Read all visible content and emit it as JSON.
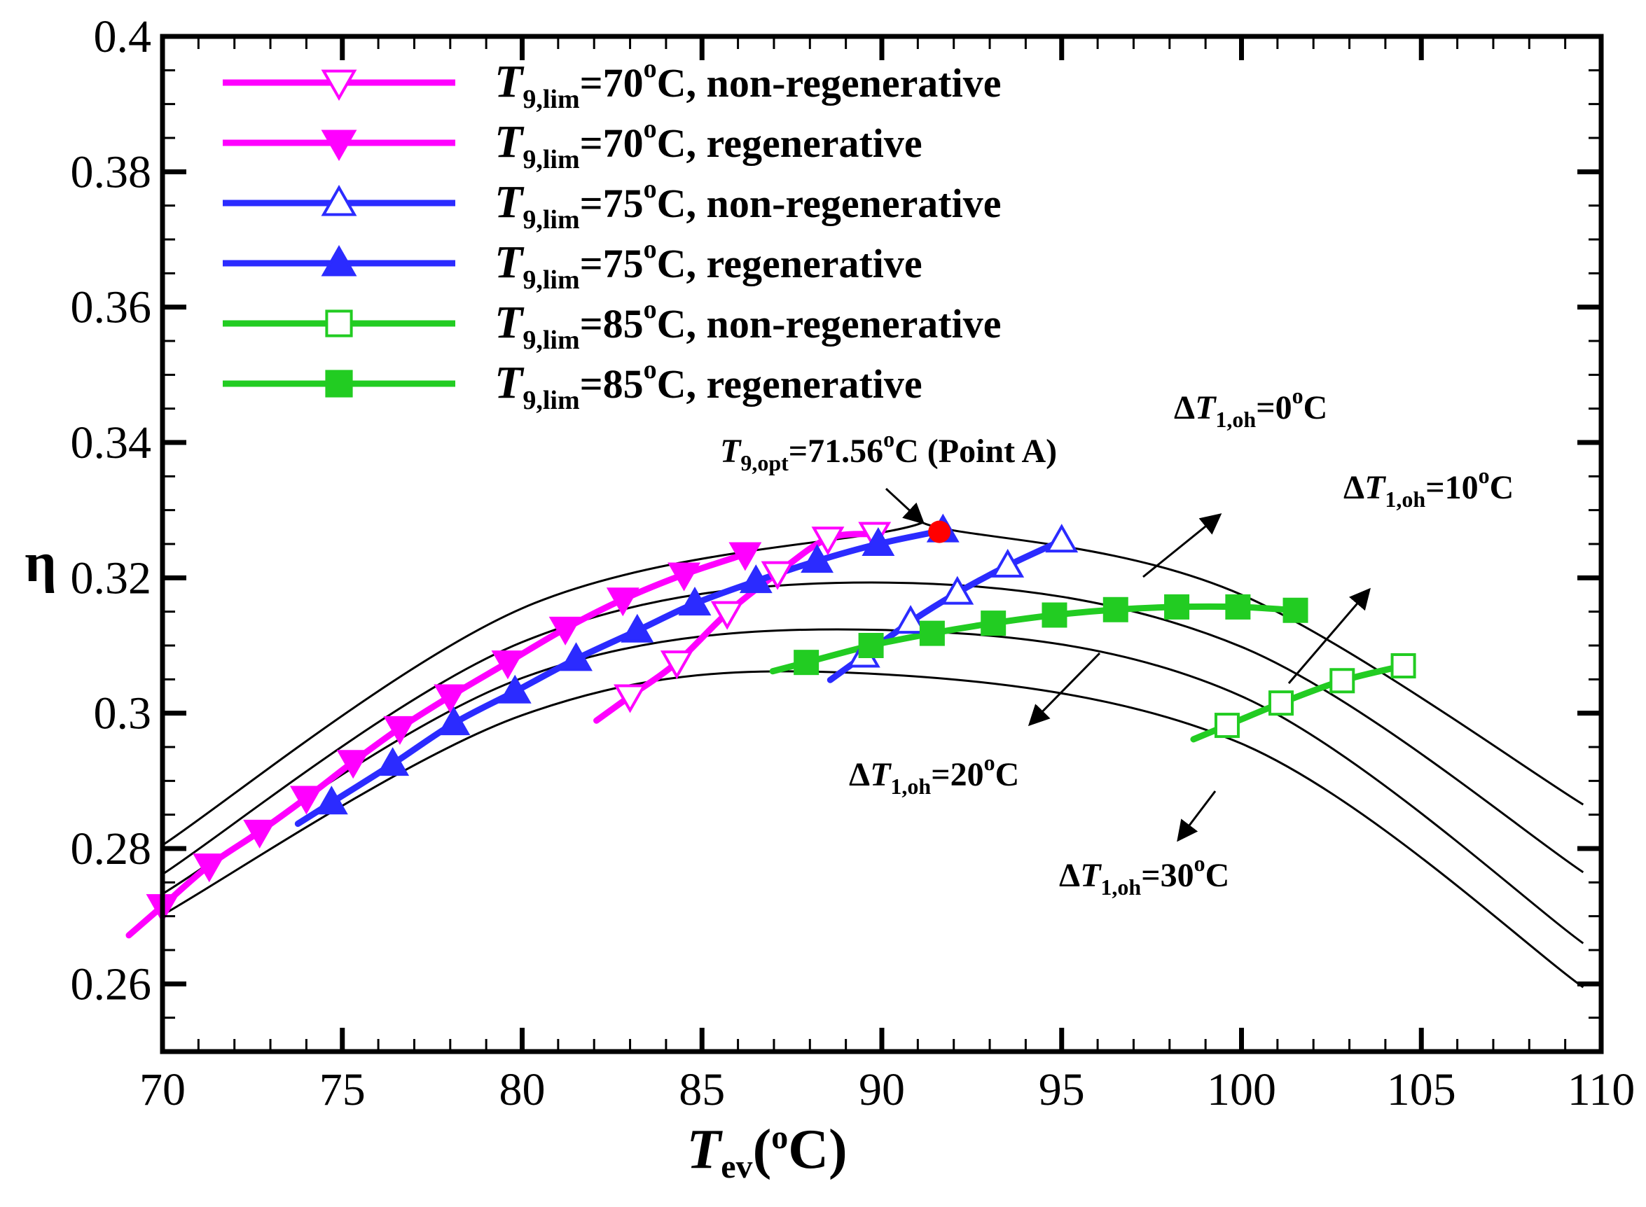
{
  "chart_data": {
    "type": "line",
    "xlabel": {
      "main": "T",
      "sub": "ev",
      "rest": "(",
      "sup": "o",
      "tail": "C)"
    },
    "ylabel": "η",
    "xlim": [
      70,
      110
    ],
    "ylim": [
      0.25,
      0.4
    ],
    "x_ticks": [
      70,
      75,
      80,
      85,
      90,
      95,
      100,
      105,
      110
    ],
    "x_tick_labels": [
      "70",
      "75",
      "80",
      "85",
      "90",
      "95",
      "100",
      "105",
      "110"
    ],
    "y_ticks": [
      0.26,
      0.28,
      0.3,
      0.32,
      0.34,
      0.36,
      0.38,
      0.4
    ],
    "y_tick_labels": [
      "0.26",
      "0.28",
      "0.3",
      "0.32",
      "0.34",
      "0.36",
      "0.38",
      "0.4"
    ],
    "grid": false,
    "legend_position": "top-left",
    "colors": {
      "magenta": "#ff00ff",
      "blue": "#2b2bff",
      "green": "#22cc22",
      "red": "#ff0000",
      "black": "#000000"
    },
    "series": [
      {
        "name": "T9,lim=70oC, non-regenerative",
        "legend": {
          "var": "T",
          "sub": "9,lim",
          "eq": "=70",
          "sup": "o",
          "tail": "C, non-regenerative"
        },
        "color": "#ff00ff",
        "marker": "triangle-down",
        "filled": false,
        "x": [
          83.0,
          84.3,
          85.7,
          87.1,
          88.5,
          89.8
        ],
        "y": [
          0.3025,
          0.3075,
          0.3148,
          0.3207,
          0.3258,
          0.3265
        ]
      },
      {
        "name": "T9,lim=70oC, regenerative",
        "legend": {
          "var": "T",
          "sub": "9,lim",
          "eq": "=70",
          "sup": "o",
          "tail": "C, regenerative"
        },
        "color": "#ff00ff",
        "marker": "triangle-down",
        "filled": true,
        "x": [
          70.0,
          71.3,
          72.7,
          74.0,
          75.3,
          76.6,
          78.0,
          79.6,
          81.2,
          82.8,
          84.5,
          86.2
        ],
        "y": [
          0.2715,
          0.2775,
          0.2825,
          0.2875,
          0.2928,
          0.2978,
          0.3025,
          0.3075,
          0.3125,
          0.3168,
          0.3205,
          0.3235
        ]
      },
      {
        "name": "T9,lim=75oC, non-regenerative",
        "legend": {
          "var": "T",
          "sub": "9,lim",
          "eq": "=75",
          "sup": "o",
          "tail": "C, non-regenerative"
        },
        "color": "#2b2bff",
        "marker": "triangle-up",
        "filled": false,
        "x": [
          89.5,
          90.8,
          92.1,
          93.5,
          95.0
        ],
        "y": [
          0.3085,
          0.3135,
          0.3178,
          0.3218,
          0.3255
        ]
      },
      {
        "name": "T9,lim=75oC, regenerative",
        "legend": {
          "var": "T",
          "sub": "9,lim",
          "eq": "=75",
          "sup": "o",
          "tail": "C, regenerative"
        },
        "color": "#2b2bff",
        "marker": "triangle-up",
        "filled": true,
        "x": [
          74.7,
          76.4,
          78.1,
          79.8,
          81.5,
          83.2,
          84.8,
          86.5,
          88.2,
          89.9,
          91.7
        ],
        "y": [
          0.2868,
          0.2925,
          0.2985,
          0.3032,
          0.308,
          0.3122,
          0.3162,
          0.3195,
          0.3225,
          0.325,
          0.327
        ]
      },
      {
        "name": "T9,lim=85oC, non-regenerative",
        "legend": {
          "var": "T",
          "sub": "9,lim",
          "eq": "=85",
          "sup": "o",
          "tail": "C, non-regenerative"
        },
        "color": "#22cc22",
        "marker": "square",
        "filled": false,
        "x": [
          99.6,
          101.1,
          102.8,
          104.5
        ],
        "y": [
          0.2982,
          0.3015,
          0.3048,
          0.307
        ]
      },
      {
        "name": "T9,lim=85oC, regenerative",
        "legend": {
          "var": "T",
          "sub": "9,lim",
          "eq": "=85",
          "sup": "o",
          "tail": "C, regenerative"
        },
        "color": "#22cc22",
        "marker": "square",
        "filled": true,
        "x": [
          87.9,
          89.7,
          91.4,
          93.1,
          94.8,
          96.5,
          98.2,
          99.9,
          101.5
        ],
        "y": [
          0.3075,
          0.31,
          0.3118,
          0.3133,
          0.3145,
          0.3153,
          0.3157,
          0.3157,
          0.3152
        ]
      }
    ],
    "reference_curves": [
      {
        "name": "dT1,oh=0oC",
        "x": [
          70,
          80,
          90,
          92,
          100,
          109.5
        ],
        "y": [
          0.2805,
          0.3155,
          0.3267,
          0.327,
          0.3175,
          0.2865
        ]
      },
      {
        "name": "dT1,oh=10oC",
        "x": [
          70,
          80,
          90,
          100,
          109.5
        ],
        "y": [
          0.2762,
          0.3105,
          0.3193,
          0.3098,
          0.2765
        ]
      },
      {
        "name": "dT1,oh=20oC",
        "x": [
          70,
          80,
          90,
          100,
          109.5
        ],
        "y": [
          0.2733,
          0.3052,
          0.3123,
          0.3025,
          0.266
        ]
      },
      {
        "name": "dT1,oh=30oC",
        "x": [
          70,
          80,
          89,
          100,
          109.5
        ],
        "y": [
          0.2702,
          0.2997,
          0.306,
          0.2955,
          0.2595
        ]
      }
    ],
    "point_a": {
      "x": 91.6,
      "y": 0.3268,
      "color": "#ff0000"
    },
    "annotations": {
      "point_a_label": {
        "var": "T",
        "sub": "9,opt",
        "eq": "=71.56",
        "sup": "o",
        "tail": "C (Point A)"
      },
      "dt0": {
        "pre": "Δ",
        "var": "T",
        "sub": "1,oh",
        "eq": "=0",
        "sup": "o",
        "tail": "C"
      },
      "dt10": {
        "pre": "Δ",
        "var": "T",
        "sub": "1,oh",
        "eq": "=10",
        "sup": "o",
        "tail": "C"
      },
      "dt20": {
        "pre": "Δ",
        "var": "T",
        "sub": "1,oh",
        "eq": "=20",
        "sup": "o",
        "tail": "C"
      },
      "dt30": {
        "pre": "Δ",
        "var": "T",
        "sub": "1,oh",
        "eq": "=30",
        "sup": "o",
        "tail": "C"
      }
    }
  }
}
